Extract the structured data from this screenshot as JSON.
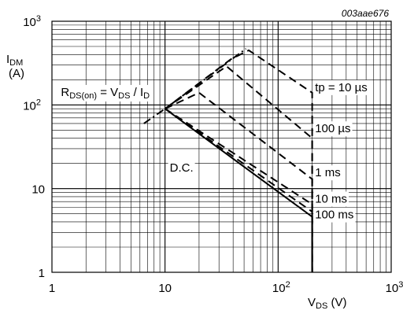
{
  "figure_code": "003aae676",
  "chart_data": {
    "type": "line",
    "x_scale": "log",
    "y_scale": "log",
    "xlim": [
      1,
      1000
    ],
    "ylim": [
      1,
      1000
    ],
    "grid": true,
    "ylabel": {
      "main": "I",
      "sub": "DM",
      "unit": "(A)"
    },
    "xlabel": {
      "main": "V",
      "sub": "DS",
      "unit": " (V)"
    },
    "x_ticks": [
      {
        "value": 1,
        "base": "1",
        "exp": ""
      },
      {
        "value": 10,
        "base": "10",
        "exp": ""
      },
      {
        "value": 100,
        "base": "10",
        "exp": "2"
      },
      {
        "value": 1000,
        "base": "10",
        "exp": "3"
      }
    ],
    "y_ticks": [
      {
        "value": 1,
        "base": "1",
        "exp": ""
      },
      {
        "value": 10,
        "base": "10",
        "exp": ""
      },
      {
        "value": 100,
        "base": "10",
        "exp": "2"
      },
      {
        "value": 1000,
        "base": "10",
        "exp": "3"
      }
    ],
    "rds_label": {
      "text1": "R",
      "sub1": "DS(on)",
      "text2": " = V",
      "sub2": "DS",
      "text3": " / I",
      "sub3": "D",
      "at": [
        1.2,
        128
      ]
    },
    "series": [
      {
        "name": "tp = 10 µs",
        "style": "dash",
        "points": [
          [
            10,
            90
          ],
          [
            38,
            350
          ],
          [
            55,
            450
          ],
          [
            200,
            140
          ],
          [
            200,
            1
          ]
        ],
        "label_at": [
          212,
          146
        ]
      },
      {
        "name": "100 µs",
        "style": "dash",
        "points": [
          [
            10,
            90
          ],
          [
            35,
            290
          ],
          [
            200,
            40
          ],
          [
            200,
            1
          ]
        ],
        "label_at": [
          212,
          47
        ]
      },
      {
        "name": "1 ms",
        "style": "dash",
        "points": [
          [
            10,
            90
          ],
          [
            20,
            140
          ],
          [
            200,
            13
          ],
          [
            200,
            1
          ]
        ],
        "label_at": [
          212,
          14
        ]
      },
      {
        "name": "10 ms",
        "style": "dash",
        "points": [
          [
            10,
            90
          ],
          [
            200,
            6.5
          ],
          [
            200,
            1
          ]
        ],
        "label_at": [
          212,
          6.8
        ]
      },
      {
        "name": "100 ms",
        "style": "dash",
        "points": [
          [
            10,
            90
          ],
          [
            200,
            5.3
          ],
          [
            200,
            1
          ]
        ],
        "label_at": [
          212,
          4.4
        ]
      },
      {
        "name": "D.C.",
        "style": "solid",
        "points": [
          [
            10,
            90
          ],
          [
            200,
            4.6
          ],
          [
            200,
            1
          ]
        ],
        "label_at": [
          11,
          16
        ]
      },
      {
        "name": "",
        "style": "dashdot",
        "points": [
          [
            6.5,
            60
          ],
          [
            10,
            90
          ],
          [
            52,
            470
          ]
        ]
      }
    ]
  }
}
